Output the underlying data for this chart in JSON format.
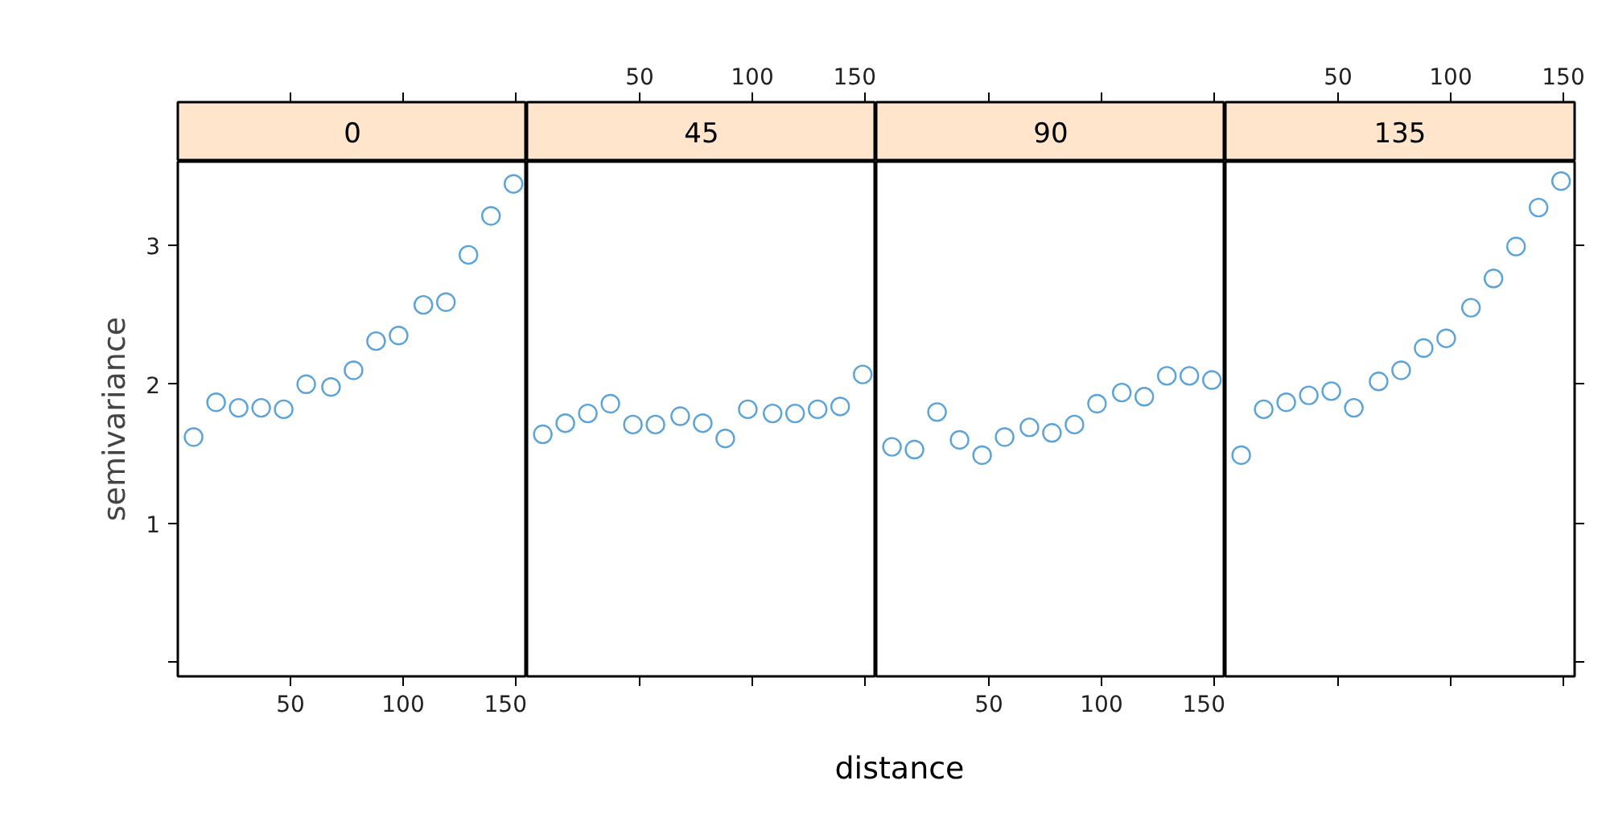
{
  "chart_data": [
    {
      "type": "scatter",
      "title": "0",
      "ylabel": "semivariance",
      "marker": "circle",
      "xlim": [
        0,
        155
      ],
      "xticks": [
        50,
        100,
        150
      ],
      "ylim": [
        -0.1,
        3.6
      ],
      "yticks": [
        {
          "value": 0,
          "label": null
        },
        1,
        2,
        3
      ],
      "x": [
        7,
        17,
        27,
        37,
        47,
        57,
        68,
        78,
        88,
        98,
        109,
        119,
        129,
        139,
        149
      ],
      "series": [
        {
          "color": "#5ba3d9",
          "values": [
            1.62,
            1.87,
            1.83,
            1.83,
            1.82,
            2.0,
            1.98,
            2.1,
            2.31,
            2.35,
            2.57,
            2.59,
            2.93,
            3.21,
            3.44
          ]
        }
      ]
    },
    {
      "type": "scatter",
      "title": "45",
      "xlabel": "distance",
      "marker": "circle",
      "tick_labels": false,
      "xlim": [
        0,
        155
      ],
      "xticks": [
        50,
        100,
        150
      ],
      "x2lim": [
        0,
        155
      ],
      "x2ticks": [
        50,
        100,
        150
      ],
      "ylim": [
        -0.1,
        3.6
      ],
      "x": [
        7,
        17,
        27,
        37,
        47,
        57,
        68,
        78,
        88,
        98,
        109,
        119,
        129,
        139,
        149
      ],
      "series": [
        {
          "color": "#5ba3d9",
          "values": [
            1.64,
            1.72,
            1.79,
            1.86,
            1.71,
            1.71,
            1.77,
            1.72,
            1.61,
            1.82,
            1.79,
            1.79,
            1.82,
            1.84,
            2.07
          ]
        }
      ]
    },
    {
      "type": "scatter",
      "title": "90",
      "marker": "circle",
      "tick_labels": "x",
      "xlim": [
        0,
        155
      ],
      "xticks": [
        50,
        100,
        150
      ],
      "ylim": [
        -0.1,
        3.6
      ],
      "x": [
        7,
        17,
        27,
        37,
        47,
        57,
        68,
        78,
        88,
        98,
        109,
        119,
        129,
        139,
        149
      ],
      "series": [
        {
          "color": "#5ba3d9",
          "values": [
            1.55,
            1.53,
            1.8,
            1.6,
            1.49,
            1.62,
            1.69,
            1.65,
            1.71,
            1.86,
            1.94,
            1.91,
            2.06,
            2.06,
            2.03
          ]
        }
      ]
    },
    {
      "type": "scatter",
      "title": "135",
      "marker": "circle",
      "tick_labels": false,
      "xlim": [
        0,
        155
      ],
      "xticks": [
        50,
        100,
        150
      ],
      "x2lim": [
        0,
        155
      ],
      "x2ticks": [
        50,
        100,
        150
      ],
      "ylim": [
        -0.1,
        3.6
      ],
      "yticks": [
        {
          "value": 0,
          "label": null
        },
        1,
        2,
        3
      ],
      "x": [
        7,
        17,
        27,
        37,
        47,
        57,
        68,
        78,
        88,
        98,
        109,
        119,
        129,
        139,
        149
      ],
      "series": [
        {
          "color": "#5ba3d9",
          "values": [
            1.49,
            1.82,
            1.87,
            1.92,
            1.95,
            1.83,
            2.02,
            2.1,
            2.26,
            2.33,
            2.55,
            2.76,
            2.99,
            3.27,
            3.46
          ]
        }
      ]
    }
  ]
}
